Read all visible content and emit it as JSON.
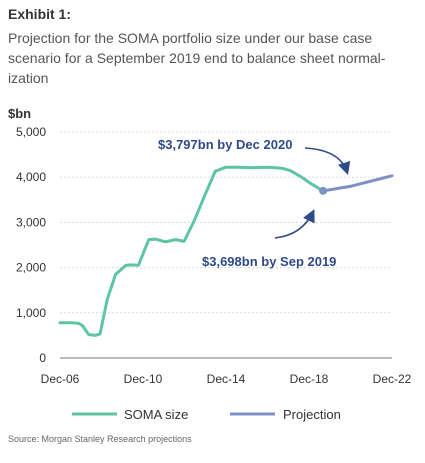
{
  "exhibit_label": "Exhibit 1:",
  "subtitle": "Projection for the SOMA portfolio size under our base case scenario for a September 2019 end to balance sheet normal-ization",
  "source": "Source: Morgan Stanley Research projections",
  "colors": {
    "soma": "#5ec4a6",
    "projection": "#7f91c4",
    "annotation": "#2e4a8a",
    "axis": "#777777",
    "grid": "#d8d8d8"
  },
  "chart_data": {
    "type": "line",
    "ylabel": "$bn",
    "ylim": [
      0,
      5000
    ],
    "y_ticks": [
      0,
      1000,
      2000,
      3000,
      4000,
      5000
    ],
    "y_tick_labels": [
      "0",
      "1,000",
      "2,000",
      "3,000",
      "4,000",
      "5,000"
    ],
    "xlim": [
      2006.92,
      2022.92
    ],
    "x_ticks": [
      2006.92,
      2010.92,
      2014.92,
      2018.92,
      2022.92
    ],
    "x_tick_labels": [
      "Dec-06",
      "Dec-10",
      "Dec-14",
      "Dec-18",
      "Dec-22"
    ],
    "series": [
      {
        "name": "SOMA size",
        "color": "#5ec4a6",
        "x": [
          2006.92,
          2007.4,
          2007.8,
          2008.0,
          2008.3,
          2008.6,
          2008.85,
          2009.2,
          2009.6,
          2010.1,
          2010.3,
          2010.7,
          2011.2,
          2011.5,
          2012.0,
          2012.5,
          2012.9,
          2013.4,
          2013.9,
          2014.4,
          2014.9,
          2015.5,
          2016.2,
          2017.0,
          2017.6,
          2018.0,
          2018.5,
          2019.0,
          2019.6
        ],
        "y": [
          780,
          780,
          770,
          720,
          520,
          500,
          530,
          1300,
          1850,
          2050,
          2060,
          2050,
          2620,
          2630,
          2570,
          2620,
          2580,
          3050,
          3600,
          4130,
          4220,
          4220,
          4210,
          4220,
          4200,
          4150,
          4020,
          3860,
          3698
        ]
      },
      {
        "name": "Projection",
        "color": "#7f91c4",
        "x": [
          2019.6,
          2020.9,
          2022.92
        ],
        "y": [
          3698,
          3797,
          4030
        ]
      }
    ],
    "annotations": [
      {
        "text": "$3,797bn by Dec 2020"
      },
      {
        "text": "$3,698bn by Sep 2019"
      }
    ],
    "legend": {
      "placement": "bottom",
      "items": [
        "SOMA size",
        "Projection"
      ]
    }
  }
}
